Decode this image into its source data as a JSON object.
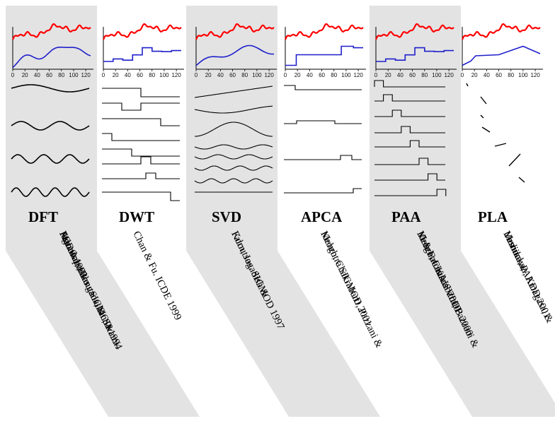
{
  "colors": {
    "band": "#e3e3e3",
    "raw_series": "#ff0000",
    "approximation": "#1f1fcc",
    "basis": "#000000"
  },
  "axis_ticks": [
    "0",
    "20",
    "40",
    "60",
    "80",
    "100",
    "120"
  ],
  "methods": [
    {
      "key": "dft",
      "name": "DFT",
      "citation": [
        "Agrawal, Faloutsos, &. Swami.",
        "FODO 1993",
        "Faloutsos, Ranganathan, &",
        "Manolopoulos . SIGMOD 1994"
      ]
    },
    {
      "key": "dwt",
      "name": "DWT",
      "citation": [
        "Chan & Fu. ICDE 1999"
      ]
    },
    {
      "key": "svd",
      "name": "SVD",
      "citation": [
        "Korn, Jagadish &",
        "Faloutsos. SIGMOD 1997"
      ]
    },
    {
      "key": "apca",
      "name": "APCA",
      "citation": [
        "Keogh, Chakrabarti, Pazzani &",
        "Mehrotra SIGMOD 2001"
      ]
    },
    {
      "key": "paa",
      "name": "PAA",
      "citation": [
        "Keogh, Chakrabarti, Pazzani &",
        "Mehrotra KAIS 2000",
        "Yi & Faloutsos VLDB 2000"
      ]
    },
    {
      "key": "pla",
      "name": "PLA",
      "citation": [
        "Morinaka,",
        "Yoshikawa, Amagasa, &",
        "Uemura, PAKDD 2001"
      ]
    }
  ]
}
